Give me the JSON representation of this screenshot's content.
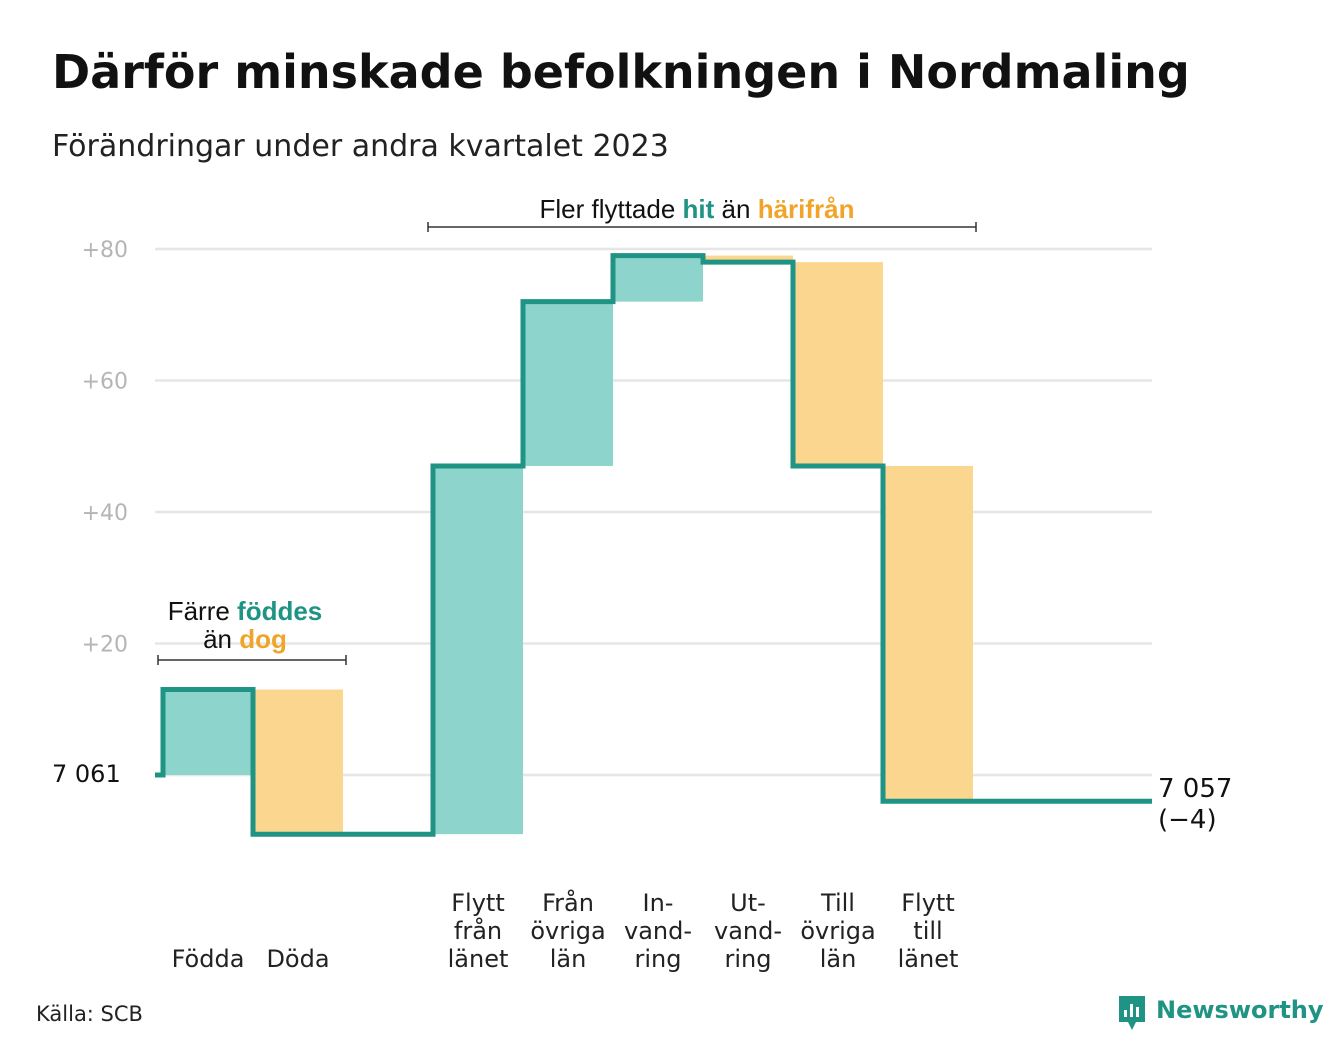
{
  "title": "Därför minskade befolkningen i Nordmaling",
  "subtitle": "Förändringar under andra kvartalet 2023",
  "source": "Källa: SCB",
  "brand": "Newsworthy",
  "colors": {
    "increase": "#8dd5cc",
    "decrease": "#fad68e",
    "line": "#1f9384",
    "teal_text": "#1f9384",
    "orange_text": "#f0a52a"
  },
  "chart_data": {
    "type": "waterfall",
    "start_label": "7  061",
    "start_value": 0,
    "end_label_value": "7 057",
    "end_label_change": "(−4)",
    "y_ticks": [
      {
        "value": 20,
        "label": "+20"
      },
      {
        "value": 40,
        "label": "+40"
      },
      {
        "value": 60,
        "label": "+60"
      },
      {
        "value": 80,
        "label": "+80"
      }
    ],
    "ylim": [
      -10,
      85
    ],
    "steps": [
      {
        "key": "fodda",
        "lines": [
          "Födda"
        ],
        "change": 13
      },
      {
        "key": "doda",
        "lines": [
          "Döda"
        ],
        "change": -22
      },
      {
        "key": "gap",
        "lines": [],
        "change": 0
      },
      {
        "key": "flytt_fran_lanet",
        "lines": [
          "Flytt",
          "från",
          "länet"
        ],
        "change": 56
      },
      {
        "key": "fran_ovriga_lan",
        "lines": [
          "Från",
          "övriga",
          "län"
        ],
        "change": 25
      },
      {
        "key": "invandring",
        "lines": [
          "In-",
          "vand-",
          "ring"
        ],
        "change": 7
      },
      {
        "key": "utvandring",
        "lines": [
          "Ut-",
          "vand-",
          "ring"
        ],
        "change": -1
      },
      {
        "key": "till_ovriga_lan",
        "lines": [
          "Till",
          "övriga",
          "län"
        ],
        "change": -31
      },
      {
        "key": "flytt_till_lanet",
        "lines": [
          "Flytt",
          "till",
          "länet"
        ],
        "change": -51
      }
    ],
    "annotations": {
      "births": {
        "line1_a": "Färre ",
        "line1_b": "föddes",
        "line2_a": "än ",
        "line2_b": "dog"
      },
      "migration": {
        "a": "Fler flyttade ",
        "b": "hit",
        "c": " än ",
        "d": "härifrån"
      }
    }
  }
}
